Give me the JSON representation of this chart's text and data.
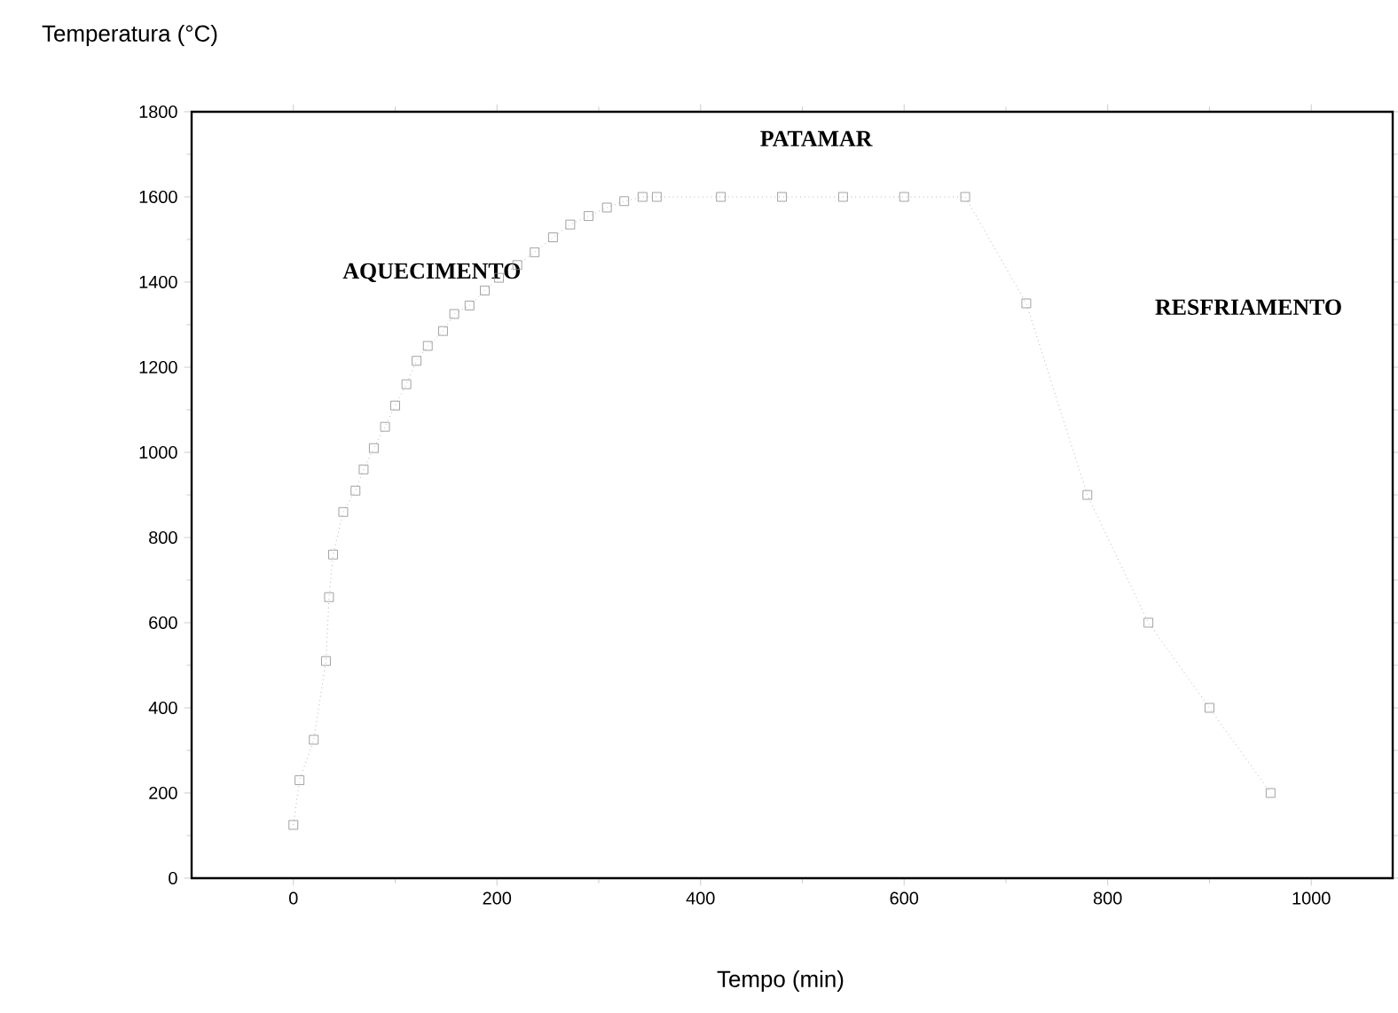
{
  "chart_data": {
    "type": "line",
    "xlabel": "Tempo (min)",
    "ylabel": "Temperatura (°C)",
    "annotations": [
      "AQUECIMENTO",
      "PATAMAR",
      "RESFRIAMENTO"
    ],
    "series": [
      {
        "color": "#8c8c8c",
        "marker": "square",
        "line_style": "dotted",
        "x": [
          0,
          6,
          20,
          32,
          35,
          39,
          49,
          61,
          69,
          79,
          90,
          100,
          111,
          121,
          132,
          147,
          158,
          173,
          188,
          202,
          220,
          237,
          255,
          272,
          290,
          308,
          325,
          343,
          357,
          420,
          480,
          540,
          600,
          660,
          720,
          780,
          840,
          900,
          960
        ],
        "values": [
          125,
          230,
          325,
          510,
          660,
          760,
          860,
          910,
          960,
          1010,
          1060,
          1110,
          1160,
          1215,
          1250,
          1285,
          1325,
          1345,
          1380,
          1410,
          1440,
          1470,
          1505,
          1535,
          1555,
          1575,
          1590,
          1600,
          1600,
          1600,
          1600,
          1600,
          1600,
          1600,
          1350,
          900,
          600,
          400,
          200
        ]
      }
    ],
    "xlim": [
      -100,
      1080
    ],
    "ylim": [
      0,
      1800
    ],
    "xticks": [
      0,
      200,
      400,
      600,
      800,
      1000
    ],
    "yticks": [
      0,
      200,
      400,
      600,
      800,
      1000,
      1200,
      1400,
      1600,
      1800
    ],
    "grid": false
  }
}
